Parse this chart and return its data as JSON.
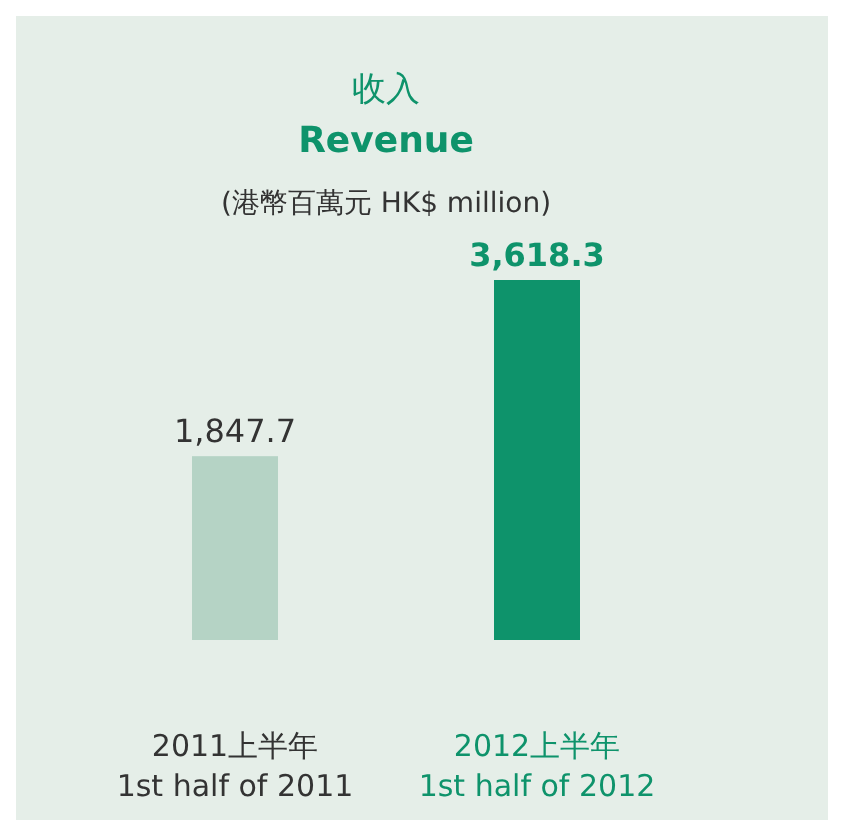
{
  "chart_data": {
    "type": "bar",
    "title": "收入",
    "subtitle": "**Revenue**",
    "ylabel": "(港幣百萬元 HK$ million)",
    "categories": [
      "2011上半年\n1st half of 2011",
      "2012上半年\n1st half of 2012"
    ],
    "values": [
      1847.7,
      3618.3
    ],
    "value_labels": [
      "1,847.7",
      "3,618.3"
    ],
    "colors": [
      "#b5d3c5",
      "#0e936b"
    ]
  }
}
